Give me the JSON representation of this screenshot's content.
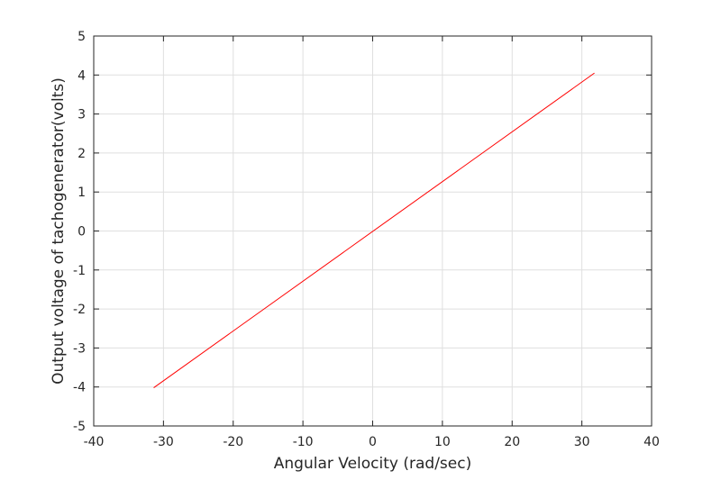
{
  "chart_data": {
    "type": "line",
    "title": "",
    "xlabel": "Angular Velocity (rad/sec)",
    "ylabel": "Output voltage of tachogenerator(volts)",
    "xlim": [
      -40,
      40
    ],
    "ylim": [
      -5,
      5
    ],
    "xticks": [
      -40,
      -30,
      -20,
      -10,
      0,
      10,
      20,
      30,
      40
    ],
    "yticks": [
      -5,
      -4,
      -3,
      -2,
      -1,
      0,
      1,
      2,
      3,
      4,
      5
    ],
    "grid": true,
    "series": [
      {
        "color": "#ff0000",
        "x": [
          -31.4,
          31.8
        ],
        "y": [
          -4.02,
          4.05
        ]
      }
    ]
  }
}
